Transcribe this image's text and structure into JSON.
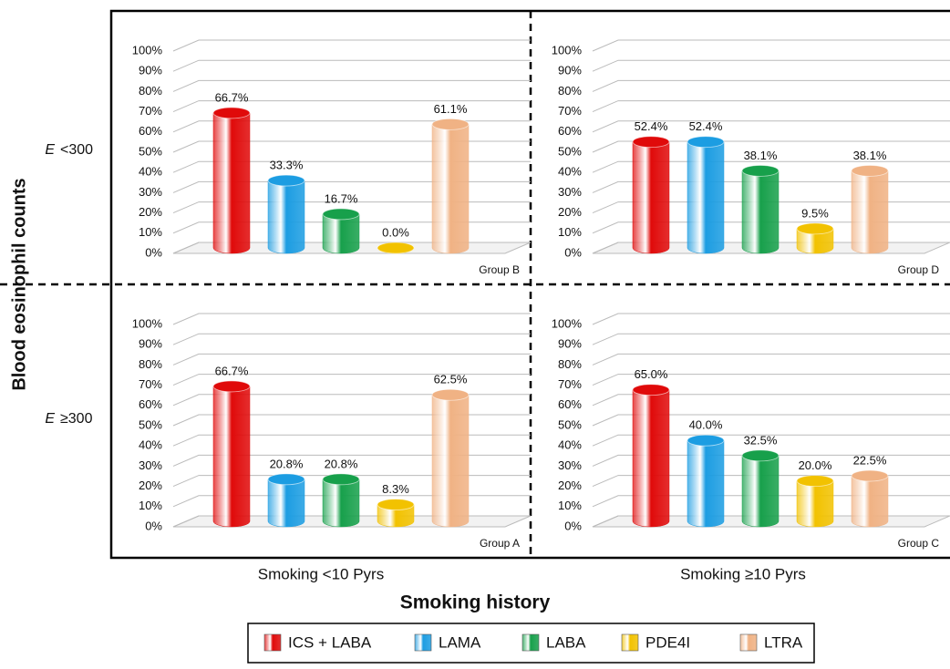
{
  "chart_data": [
    {
      "type": "bar",
      "label": "Group B",
      "values": [
        66.7,
        33.3,
        16.7,
        0.0,
        61.1
      ],
      "value_labels": [
        "66.7%",
        "33.3%",
        "16.7%",
        "0.0%",
        "61.1%"
      ],
      "ylim": [
        0,
        100
      ],
      "yticks": [
        {
          "value": 0,
          "label": "0%"
        },
        {
          "value": 10,
          "label": "10%"
        },
        {
          "value": 20,
          "label": "20%"
        },
        {
          "value": 30,
          "label": "30%"
        },
        {
          "value": 40,
          "label": "40%"
        },
        {
          "value": 50,
          "label": "50%"
        },
        {
          "value": 60,
          "label": "60%"
        },
        {
          "value": 70,
          "label": "70%"
        },
        {
          "value": 80,
          "label": "80%"
        },
        {
          "value": 90,
          "label": "90%"
        },
        {
          "value": 100,
          "label": "100%"
        }
      ],
      "grid": true
    },
    {
      "type": "bar",
      "label": "Group D",
      "values": [
        52.4,
        52.4,
        38.1,
        9.5,
        38.1
      ],
      "value_labels": [
        "52.4%",
        "52.4%",
        "38.1%",
        "9.5%",
        "38.1%"
      ],
      "ylim": [
        0,
        100
      ],
      "yticks": [
        {
          "value": 0,
          "label": "0%"
        },
        {
          "value": 10,
          "label": "10%"
        },
        {
          "value": 20,
          "label": "20%"
        },
        {
          "value": 30,
          "label": "30%"
        },
        {
          "value": 40,
          "label": "40%"
        },
        {
          "value": 50,
          "label": "50%"
        },
        {
          "value": 60,
          "label": "60%"
        },
        {
          "value": 70,
          "label": "70%"
        },
        {
          "value": 80,
          "label": "80%"
        },
        {
          "value": 90,
          "label": "90%"
        },
        {
          "value": 100,
          "label": "100%"
        }
      ],
      "grid": true
    },
    {
      "type": "bar",
      "label": "Group A",
      "values": [
        66.7,
        20.8,
        20.8,
        8.3,
        62.5
      ],
      "value_labels": [
        "66.7%",
        "20.8%",
        "20.8%",
        "8.3%",
        "62.5%"
      ],
      "ylim": [
        0,
        100
      ],
      "yticks": [
        {
          "value": 0,
          "label": "0%"
        },
        {
          "value": 10,
          "label": "10%"
        },
        {
          "value": 20,
          "label": "20%"
        },
        {
          "value": 30,
          "label": "30%"
        },
        {
          "value": 40,
          "label": "40%"
        },
        {
          "value": 50,
          "label": "50%"
        },
        {
          "value": 60,
          "label": "60%"
        },
        {
          "value": 70,
          "label": "70%"
        },
        {
          "value": 80,
          "label": "80%"
        },
        {
          "value": 90,
          "label": "90%"
        },
        {
          "value": 100,
          "label": "100%"
        }
      ],
      "grid": true
    },
    {
      "type": "bar",
      "label": "Group C",
      "values": [
        65.0,
        40.0,
        32.5,
        20.0,
        22.5
      ],
      "value_labels": [
        "65.0%",
        "40.0%",
        "32.5%",
        "20.0%",
        "22.5%"
      ],
      "ylim": [
        0,
        100
      ],
      "yticks": [
        {
          "value": 0,
          "label": "0%"
        },
        {
          "value": 10,
          "label": "10%"
        },
        {
          "value": 20,
          "label": "20%"
        },
        {
          "value": 30,
          "label": "30%"
        },
        {
          "value": 40,
          "label": "40%"
        },
        {
          "value": 50,
          "label": "50%"
        },
        {
          "value": 60,
          "label": "60%"
        },
        {
          "value": 70,
          "label": "70%"
        },
        {
          "value": 80,
          "label": "80%"
        },
        {
          "value": 90,
          "label": "90%"
        },
        {
          "value": 100,
          "label": "100%"
        }
      ],
      "grid": true
    }
  ],
  "figure": {
    "y_title": "Blood eosinophil counts",
    "x_title": "Smoking history",
    "row_labels": [
      {
        "symbol": "E",
        "label": "<300"
      },
      {
        "symbol": "E",
        "label": "≥300"
      }
    ],
    "column_labels": [
      "Smoking <10 Pyrs",
      "Smoking ≥10 Pyrs"
    ]
  },
  "legend": {
    "items": [
      {
        "name": "ICS + LABA",
        "color": "#e00a0a"
      },
      {
        "name": "LAMA",
        "color": "#1c9de2"
      },
      {
        "name": "LABA",
        "color": "#17a04b"
      },
      {
        "name": "PDE4I",
        "color": "#f2c200"
      },
      {
        "name": "LTRA",
        "color": "#f0b284"
      }
    ]
  }
}
